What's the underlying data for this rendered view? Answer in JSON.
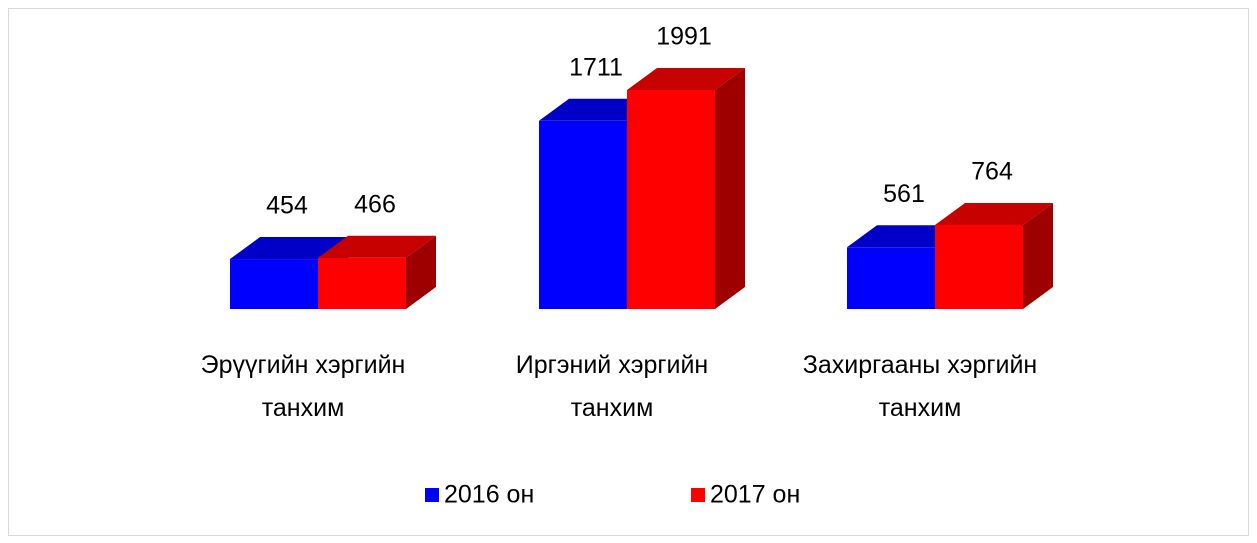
{
  "chart_data": {
    "type": "bar3d",
    "categories": [
      "Эрүүгийн хэргийн танхим",
      "Иргэний хэргийн танхим",
      "Захиргааны хэргийн танхим"
    ],
    "series": [
      {
        "name": "2016 он",
        "color": "#0000ff",
        "values": [
          454,
          1711,
          561
        ]
      },
      {
        "name": "2017 он",
        "color": "#ff0000",
        "values": [
          466,
          1991,
          764
        ]
      }
    ],
    "ylim": [
      0,
      2000
    ],
    "legend": "bottom"
  }
}
